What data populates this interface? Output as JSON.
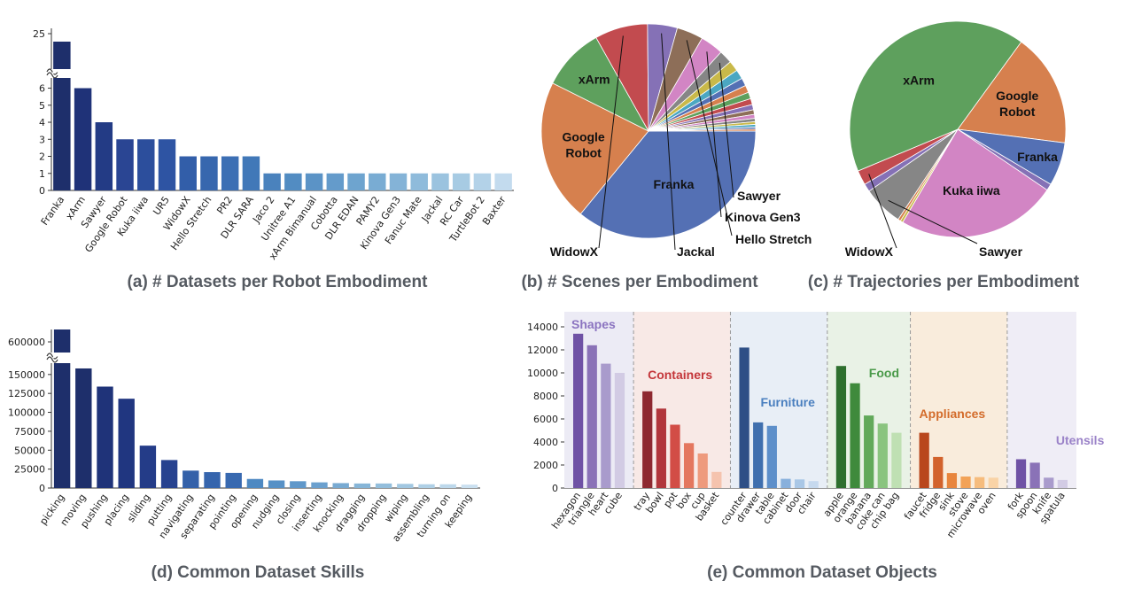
{
  "chart_data": [
    {
      "type": "bar",
      "id": "a",
      "title": "(a) # Datasets per Robot Embodiment",
      "categories": [
        "Franka",
        "xArm",
        "Sawyer",
        "Google Robot",
        "Kuka iiwa",
        "UR5",
        "WidowX",
        "Hello Stretch",
        "PR2",
        "DLR SARA",
        "Jaco 2",
        "Unitree A1",
        "xArm Bimanual",
        "Cobotta",
        "DLR EDAN",
        "PAMY2",
        "Kinova Gen3",
        "Fanuc Mate",
        "Jackal",
        "RC Car",
        "TurtleBot 2",
        "Baxter"
      ],
      "values": [
        24,
        6,
        4,
        3,
        3,
        3,
        2,
        2,
        2,
        2,
        1,
        1,
        1,
        1,
        1,
        1,
        1,
        1,
        1,
        1,
        1,
        1
      ],
      "y_ticks": [
        "0",
        "1",
        "2",
        "3",
        "4",
        "5",
        "6"
      ],
      "y_break_tick": "25",
      "ylim": [
        0,
        6.6
      ],
      "axis_break": true,
      "colors": [
        "#1e2f6b",
        "#1f3278",
        "#233b85",
        "#2a4593",
        "#2c4e9c",
        "#2e54a3",
        "#325ea9",
        "#3767ae",
        "#3c6fb4",
        "#4178b8",
        "#4a82bd",
        "#528cc2",
        "#5b93c6",
        "#649bcb",
        "#6ea4cf",
        "#79acd3",
        "#84b3d7",
        "#8fbbdb",
        "#9bc3df",
        "#a7cbe3",
        "#b3d2e8",
        "#c3dbee"
      ]
    },
    {
      "type": "pie",
      "id": "b",
      "title": "(b) # Scenes per Embodiment",
      "slices": [
        {
          "label": "Franka",
          "value": 36.0,
          "color": "#5470b4"
        },
        {
          "label": "Google Robot",
          "value": 21.5,
          "color": "#d6804e"
        },
        {
          "label": "xArm",
          "value": 9.5,
          "color": "#5ea05d"
        },
        {
          "label": "WidowX",
          "value": 8.0,
          "color": "#c24b4f"
        },
        {
          "label": "Jackal",
          "value": 4.5,
          "color": "#8571b6"
        },
        {
          "label": "Hello Stretch",
          "value": 4.0,
          "color": "#8d6e58"
        },
        {
          "label": "Kinova Gen3",
          "value": 3.5,
          "color": "#d285c4"
        },
        {
          "label": "Sawyer",
          "value": 2.0,
          "color": "#868686"
        },
        {
          "label": "",
          "value": 1.6,
          "color": "#c9b949"
        },
        {
          "label": "",
          "value": 1.4,
          "color": "#4ba7c2"
        },
        {
          "label": "",
          "value": 1.2,
          "color": "#5470b4"
        },
        {
          "label": "",
          "value": 1.1,
          "color": "#d6804e"
        },
        {
          "label": "",
          "value": 1.0,
          "color": "#5ea05d"
        },
        {
          "label": "",
          "value": 0.9,
          "color": "#c24b4f"
        },
        {
          "label": "",
          "value": 0.8,
          "color": "#8571b6"
        },
        {
          "label": "",
          "value": 0.7,
          "color": "#8d6e58"
        },
        {
          "label": "",
          "value": 0.6,
          "color": "#d285c4"
        },
        {
          "label": "",
          "value": 0.5,
          "color": "#868686"
        },
        {
          "label": "",
          "value": 0.4,
          "color": "#c9b949"
        },
        {
          "label": "",
          "value": 0.4,
          "color": "#4ba7c2"
        },
        {
          "label": "",
          "value": 0.3,
          "color": "#5470b4"
        },
        {
          "label": "",
          "value": 0.3,
          "color": "#d6804e"
        }
      ]
    },
    {
      "type": "pie",
      "id": "c",
      "title": "(c) # Trajectories per Embodiment",
      "slices": [
        {
          "label": "Google Robot",
          "value": 17.0,
          "color": "#d6804e"
        },
        {
          "label": "Franka",
          "value": 6.5,
          "color": "#5470b4"
        },
        {
          "label": "",
          "value": 1.0,
          "color": "#8571b6"
        },
        {
          "label": "Kuka iiwa",
          "value": 24.0,
          "color": "#d285c4"
        },
        {
          "label": "",
          "value": 0.4,
          "color": "#c9b949"
        },
        {
          "label": "",
          "value": 0.4,
          "color": "#d6804e"
        },
        {
          "label": "Sawyer",
          "value": 6.0,
          "color": "#868686"
        },
        {
          "label": "",
          "value": 1.2,
          "color": "#8571b6"
        },
        {
          "label": "WidowX",
          "value": 2.2,
          "color": "#c24b4f"
        },
        {
          "label": "xArm",
          "value": 41.3,
          "color": "#5ea05d"
        }
      ]
    },
    {
      "type": "bar",
      "id": "d",
      "title": "(d) Common Dataset Skills",
      "categories": [
        "picking",
        "moving",
        "pushing",
        "placing",
        "sliding",
        "putting",
        "navigating",
        "separating",
        "pointing",
        "opening",
        "nudging",
        "closing",
        "inserting",
        "knocking",
        "dragging",
        "dropping",
        "wiping",
        "assembling",
        "turning on",
        "keeping"
      ],
      "values": [
        620000,
        158000,
        134000,
        118000,
        56000,
        37000,
        23000,
        21000,
        20000,
        12000,
        10000,
        9000,
        7500,
        6500,
        6000,
        6000,
        5500,
        5000,
        5000,
        4500
      ],
      "y_ticks": [
        "0",
        "25000",
        "50000",
        "75000",
        "100000",
        "125000",
        "150000"
      ],
      "y_break_tick": "600000",
      "ylim": [
        0,
        165000
      ],
      "axis_break": true,
      "colors": [
        "#1e2f6b",
        "#1e2f6b",
        "#1f3379",
        "#203680",
        "#243c88",
        "#27428f",
        "#3461a9",
        "#3665ad",
        "#3869b0",
        "#4e89c2",
        "#5791c6",
        "#6098ca",
        "#6ba0ce",
        "#78aad2",
        "#86b5d7",
        "#93bedc",
        "#a1c7e1",
        "#afd0e6",
        "#bdd8eb",
        "#cae0f0"
      ]
    },
    {
      "type": "bar",
      "id": "e",
      "title": "(e) Common Dataset Objects",
      "y_ticks": [
        "0",
        "2000",
        "4000",
        "6000",
        "8000",
        "10000",
        "12000",
        "14000"
      ],
      "ylim": [
        0,
        14500
      ],
      "groups": [
        {
          "name": "Shapes",
          "label_color": "#8b74c0",
          "bg": "#ecebf5",
          "items": [
            {
              "label": "hexagon",
              "value": 13400,
              "color": "#6f52a5"
            },
            {
              "label": "triangle",
              "value": 12400,
              "color": "#8a72b7"
            },
            {
              "label": "heart",
              "value": 10800,
              "color": "#a99bcc"
            },
            {
              "label": "cube",
              "value": 10000,
              "color": "#d2cbe4"
            }
          ]
        },
        {
          "name": "Containers",
          "label_color": "#c4363a",
          "bg": "#f8e9e6",
          "items": [
            {
              "label": "tray",
              "value": 8400,
              "color": "#8e2830"
            },
            {
              "label": "bowl",
              "value": 6900,
              "color": "#b1353b"
            },
            {
              "label": "pot",
              "value": 5500,
              "color": "#d24d46"
            },
            {
              "label": "box",
              "value": 3900,
              "color": "#e4775f"
            },
            {
              "label": "cup",
              "value": 3000,
              "color": "#ee9a7d"
            },
            {
              "label": "basket",
              "value": 1400,
              "color": "#f5c3ae"
            }
          ]
        },
        {
          "name": "Furniture",
          "label_color": "#4a7fbf",
          "bg": "#e8eef6",
          "items": [
            {
              "label": "counter",
              "value": 12200,
              "color": "#2e4f86"
            },
            {
              "label": "drawer",
              "value": 5700,
              "color": "#3f6fae"
            },
            {
              "label": "table",
              "value": 5400,
              "color": "#5d8fca"
            },
            {
              "label": "cabinet",
              "value": 800,
              "color": "#88b0dc"
            },
            {
              "label": "door",
              "value": 750,
              "color": "#a9c7e6"
            },
            {
              "label": "chair",
              "value": 600,
              "color": "#c6d9ee"
            }
          ]
        },
        {
          "name": "Food",
          "label_color": "#4a9a4a",
          "bg": "#e9f2e6",
          "items": [
            {
              "label": "apple",
              "value": 10600,
              "color": "#2e6f2e"
            },
            {
              "label": "orange",
              "value": 9100,
              "color": "#3f8a3c"
            },
            {
              "label": "banana",
              "value": 6300,
              "color": "#62a95a"
            },
            {
              "label": "coke can",
              "value": 5600,
              "color": "#8ac47f"
            },
            {
              "label": "chip bag",
              "value": 4800,
              "color": "#bfe0b3"
            }
          ]
        },
        {
          "name": "Appliances",
          "label_color": "#d36b2a",
          "bg": "#f9ecdc",
          "items": [
            {
              "label": "faucet",
              "value": 4800,
              "color": "#b9471d"
            },
            {
              "label": "fridge",
              "value": 2700,
              "color": "#d2622c"
            },
            {
              "label": "sink",
              "value": 1300,
              "color": "#e8853d"
            },
            {
              "label": "stove",
              "value": 1000,
              "color": "#f2a257"
            },
            {
              "label": "microwave",
              "value": 950,
              "color": "#f6bc7d"
            },
            {
              "label": "oven",
              "value": 900,
              "color": "#f9d3a6"
            }
          ]
        },
        {
          "name": "Utensils",
          "label_color": "#9a82c8",
          "bg": "#efedf6",
          "items": [
            {
              "label": "fork",
              "value": 2500,
              "color": "#6f52a5"
            },
            {
              "label": "spoon",
              "value": 2200,
              "color": "#8a72b7"
            },
            {
              "label": "knife",
              "value": 900,
              "color": "#a99bcc"
            },
            {
              "label": "spatula",
              "value": 700,
              "color": "#d2cbe4"
            }
          ]
        }
      ]
    }
  ]
}
